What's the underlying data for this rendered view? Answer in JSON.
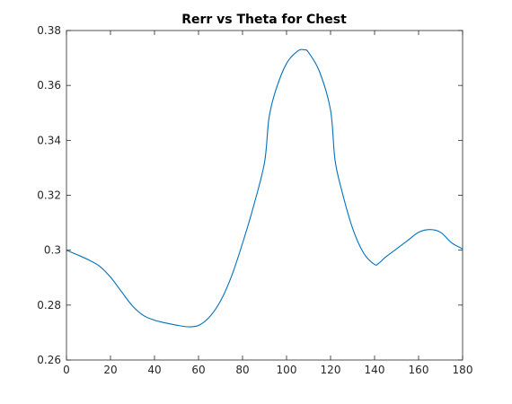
{
  "chart_data": {
    "type": "line",
    "title": "Rerr vs Theta for Chest",
    "xlabel": "",
    "ylabel": "",
    "xlim": [
      0,
      180
    ],
    "ylim": [
      0.26,
      0.38
    ],
    "xticks": [
      0,
      20,
      40,
      60,
      80,
      100,
      120,
      140,
      160,
      180
    ],
    "yticks": [
      0.26,
      0.28,
      0.3,
      0.32,
      0.34,
      0.36,
      0.38
    ],
    "xtick_labels": [
      "0",
      "20",
      "40",
      "60",
      "80",
      "100",
      "120",
      "140",
      "160",
      "180"
    ],
    "ytick_labels": [
      "0.26",
      "0.28",
      "0.3",
      "0.32",
      "0.34",
      "0.36",
      "0.38"
    ],
    "grid": false,
    "box": true,
    "series": [
      {
        "color": "#0072BD",
        "x": [
          0,
          5,
          10,
          15,
          20,
          25,
          30,
          35,
          40,
          45,
          50,
          55,
          60,
          65,
          70,
          75,
          80,
          85,
          90,
          92,
          95,
          100,
          105,
          108,
          110,
          115,
          120,
          122,
          125,
          130,
          135,
          140,
          142,
          145,
          150,
          155,
          160,
          165,
          170,
          175,
          180
        ],
        "y": [
          0.3,
          0.2983,
          0.2965,
          0.2942,
          0.2902,
          0.2849,
          0.2797,
          0.2762,
          0.2745,
          0.2735,
          0.2727,
          0.2721,
          0.2726,
          0.2757,
          0.2815,
          0.2905,
          0.3025,
          0.316,
          0.332,
          0.348,
          0.358,
          0.368,
          0.3725,
          0.373,
          0.372,
          0.365,
          0.351,
          0.333,
          0.322,
          0.308,
          0.299,
          0.2948,
          0.2953,
          0.2975,
          0.3005,
          0.3035,
          0.3065,
          0.3075,
          0.3065,
          0.3027,
          0.3005
        ]
      }
    ]
  }
}
